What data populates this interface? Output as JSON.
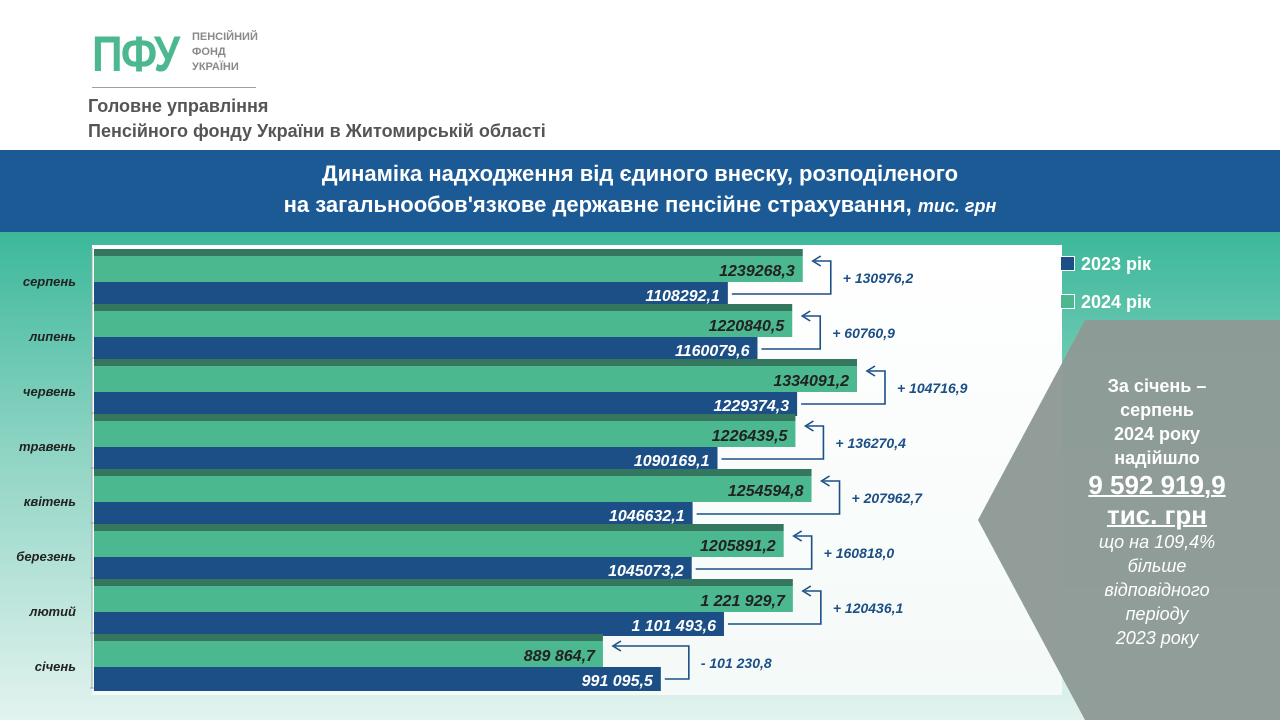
{
  "header": {
    "logo_text": "ПФУ",
    "logo_sub": [
      "ПЕНСІЙНИЙ",
      "ФОНД",
      "УКРАЇНИ"
    ],
    "org_line1": "Головне управління",
    "org_line2": "Пенсійного фонду України в Житомирській області"
  },
  "title": {
    "line1": "Динаміка надходження від єдиного внеску, розподіленого",
    "line2": "на загальнообов'язкове державне пенсійне страхування,",
    "unit": "тис. грн"
  },
  "legend": {
    "s2023": "2023 рік",
    "s2024": "2024 рік"
  },
  "summary": {
    "l1": "За січень –",
    "l2": "серпень",
    "l3": "2024 року",
    "l4": "надійшло",
    "amount": "9 592 919,9",
    "unit": "тис. грн",
    "l5": "що на 109,4%",
    "l6": "більше",
    "l7": "відповідного",
    "l8": "періоду",
    "l9": "2023 року"
  },
  "colors": {
    "bar2023": "#1c4f86",
    "bar2024": "#4bb88f",
    "bar2024_top": "#35765f",
    "diff": "#1c4f86",
    "panel": "#8e9a96"
  },
  "chart_data": {
    "type": "bar",
    "orientation": "horizontal",
    "categories": [
      "серпень",
      "липень",
      "червень",
      "травень",
      "квітень",
      "березень",
      "лютий",
      "січень"
    ],
    "series": [
      {
        "name": "2024 рік",
        "values": [
          1239268.3,
          1220840.5,
          1334091.2,
          1226439.5,
          1254594.8,
          1205891.2,
          1221929.7,
          889864.7
        ],
        "labels": [
          "1239268,3",
          "1220840,5",
          "1334091,2",
          "1226439,5",
          "1254594,8",
          "1205891,2",
          "1 221 929,7",
          "889 864,7"
        ]
      },
      {
        "name": "2023 рік",
        "values": [
          1108292.1,
          1160079.6,
          1229374.3,
          1090169.1,
          1046632.1,
          1045073.2,
          1101493.6,
          991095.5
        ],
        "labels": [
          "1108292,1",
          "1160079,6",
          "1229374,3",
          "1090169,1",
          "1046632,1",
          "1045073,2",
          "1 101 493,6",
          "991 095,5"
        ]
      }
    ],
    "differences": [
      "+ 130976,2",
      "+ 60760,9",
      "+ 104716,9",
      "+ 136270,4",
      "+ 207962,7",
      "+ 160818,0",
      "+ 120436,1",
      "- 101 230,8"
    ]
  }
}
